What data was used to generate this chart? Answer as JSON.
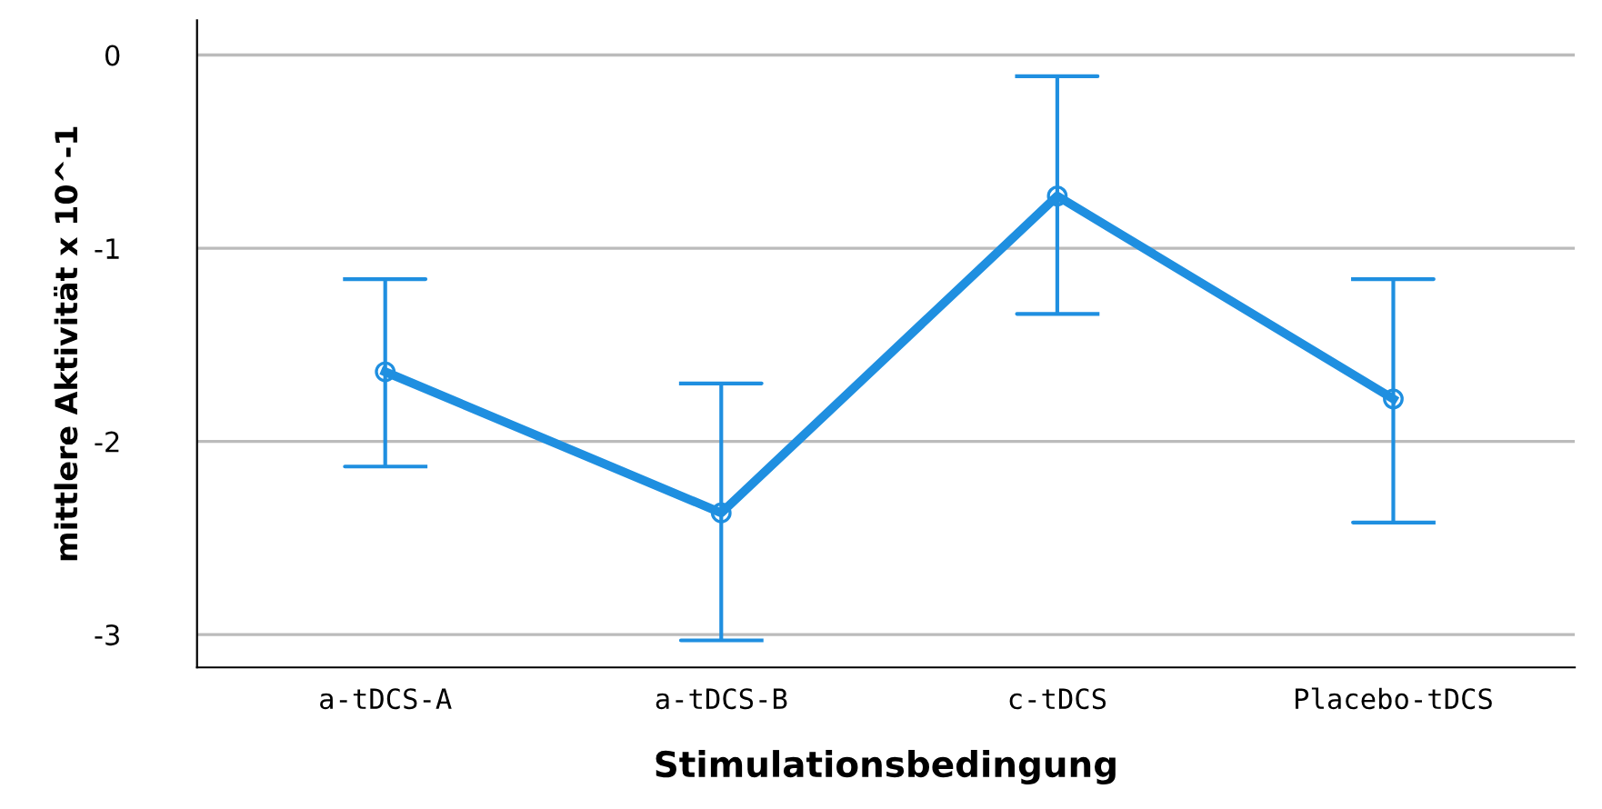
{
  "chart_data": {
    "type": "line",
    "xlabel": "Stimulationsbedingung",
    "ylabel": "mittlere Aktivität x 10^-1",
    "categories": [
      "a-tDCS-A",
      "a-tDCS-B",
      "c-tDCS",
      "Placebo-tDCS"
    ],
    "color": "#1f8fe0",
    "values": [
      -1.64,
      -2.37,
      -0.73,
      -1.78
    ],
    "errors": [
      [
        -2.13,
        -1.16
      ],
      [
        -3.03,
        -1.7
      ],
      [
        -1.34,
        -0.11
      ],
      [
        -2.42,
        -1.16
      ]
    ],
    "ylim": [
      -3.17,
      0.18
    ],
    "yticks": [
      0,
      -1,
      -2,
      -3
    ],
    "grid": "y",
    "marker": "circle",
    "line_style": "solid",
    "legend": false
  }
}
